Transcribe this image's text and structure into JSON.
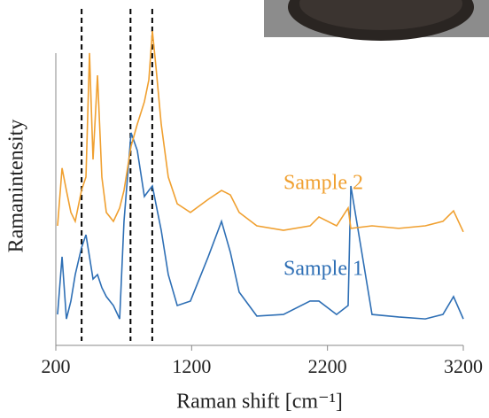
{
  "chart_data": {
    "type": "line",
    "x_label": "Raman shift [cm⁻¹]",
    "y_label": "Ramanintensity",
    "x": [
      213,
      246,
      278,
      311,
      343,
      389,
      422,
      448,
      474,
      507,
      539,
      572,
      624,
      670,
      702,
      754,
      800,
      852,
      885,
      911,
      937,
      976,
      1028,
      1094,
      1191,
      1322,
      1420,
      1485,
      1550,
      1680,
      1876,
      2072,
      2137,
      2267,
      2352,
      2372,
      2528,
      2724,
      2920,
      3050,
      3128,
      3200
    ],
    "series": [
      {
        "name": "Sample 1",
        "color": "#2e6fb5",
        "values": [
          9.7,
          27.8,
          8.3,
          13.9,
          22.2,
          30.6,
          34.7,
          27.8,
          20.8,
          22.2,
          18.1,
          15.3,
          12.5,
          8.3,
          38.9,
          66.7,
          61.1,
          46.7,
          48.6,
          50,
          44.4,
          36.1,
          22.2,
          12.5,
          13.9,
          27.8,
          38.9,
          29.2,
          16.7,
          9.2,
          9.7,
          13.9,
          13.9,
          9.7,
          12.5,
          50,
          9.7,
          8.9,
          8.3,
          9.7,
          15.3,
          8.3
        ]
      },
      {
        "name": "Sample 2",
        "color": "#f0a030",
        "values": [
          37.5,
          55.6,
          48.6,
          41.7,
          38.9,
          48.6,
          52.8,
          91.7,
          58.3,
          84.7,
          52.8,
          41.7,
          38.9,
          43.1,
          48.6,
          62.5,
          69.4,
          76.4,
          83.3,
          98.6,
          87.5,
          69.4,
          52.8,
          44.4,
          41.7,
          45.8,
          48.6,
          47.2,
          41.7,
          37.5,
          36.1,
          37.5,
          40.3,
          37.5,
          43.1,
          36.7,
          37.5,
          36.7,
          37.5,
          38.9,
          42.2,
          35.6
        ]
      }
    ],
    "xlim": [
      200,
      3200
    ],
    "xticks": [
      200,
      1200,
      2200,
      3200
    ],
    "ylim": [
      0,
      100
    ],
    "vlines": [
      390,
      750,
      910
    ]
  }
}
